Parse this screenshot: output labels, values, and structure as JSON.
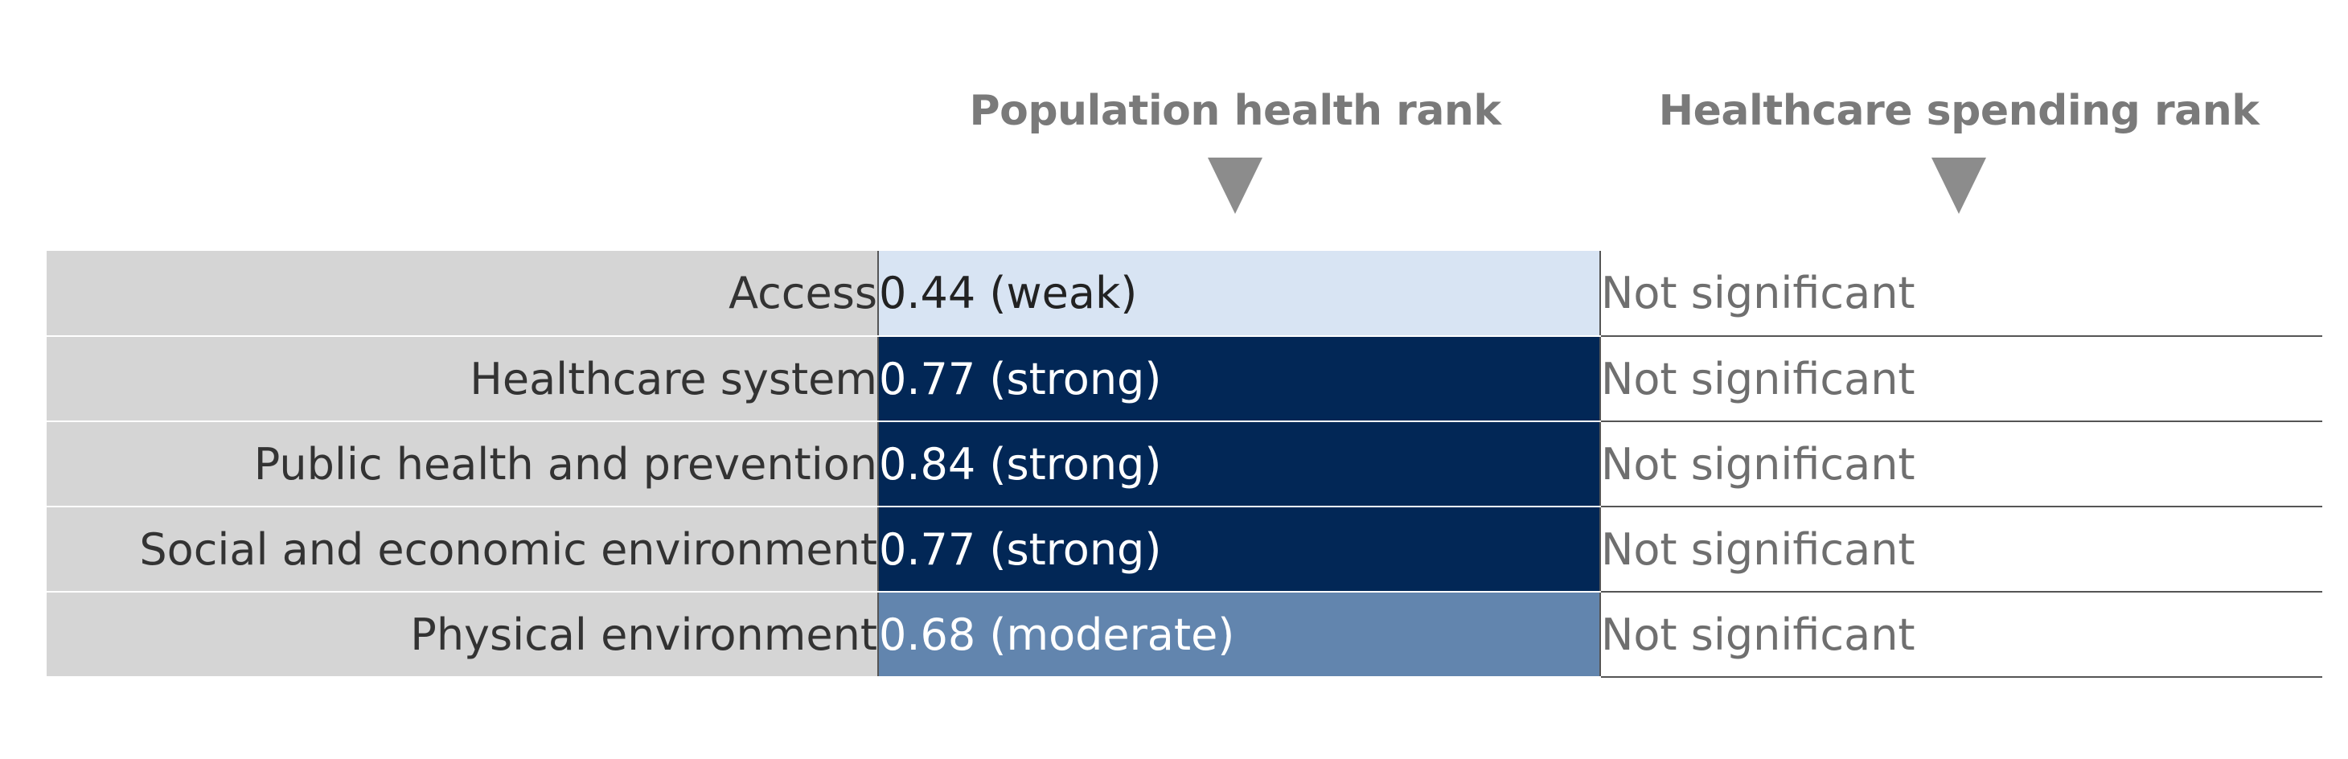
{
  "chart_data": {
    "type": "table",
    "columns": [
      "Population health rank",
      "Healthcare spending rank"
    ],
    "rows": [
      {
        "label": "Access",
        "population": "0.44 (weak)",
        "population_value": 0.44,
        "population_fill": "#d8e4f3",
        "population_text_color": "#222222",
        "spending": "Not significant"
      },
      {
        "label": "Healthcare system",
        "population": "0.77 (strong)",
        "population_value": 0.77,
        "population_fill": "#022756",
        "population_text_color": "#ffffff",
        "spending": "Not significant"
      },
      {
        "label": "Public health and prevention",
        "population": "0.84 (strong)",
        "population_value": 0.84,
        "population_fill": "#022756",
        "population_text_color": "#ffffff",
        "spending": "Not significant"
      },
      {
        "label": "Social and economic environment",
        "population": "0.77 (strong)",
        "population_value": 0.77,
        "population_fill": "#022756",
        "population_text_color": "#ffffff",
        "spending": "Not significant"
      },
      {
        "label": "Physical environment",
        "population": "0.68 (moderate)",
        "population_value": 0.68,
        "population_fill": "#6285ae",
        "population_text_color": "#ffffff",
        "spending": "Not significant"
      }
    ]
  }
}
